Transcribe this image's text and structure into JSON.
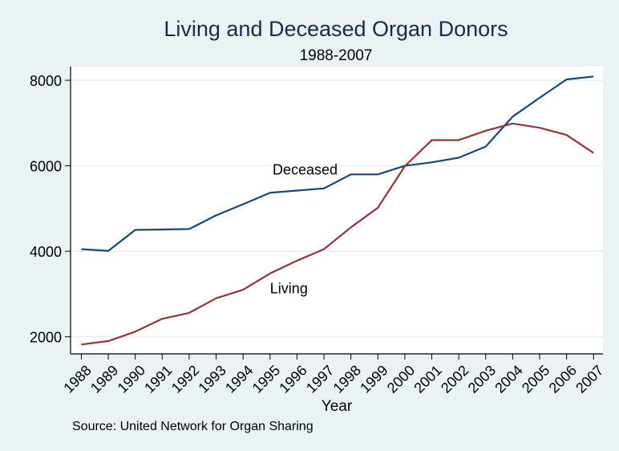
{
  "chart_data": {
    "type": "line",
    "title": "Living and Deceased Organ Donors",
    "subtitle": "1988-2007",
    "xlabel": "Year",
    "ylabel": "",
    "note": "Source: United Network for Organ Sharing",
    "x": [
      1988,
      1989,
      1990,
      1991,
      1992,
      1993,
      1994,
      1995,
      1996,
      1997,
      1998,
      1999,
      2000,
      2001,
      2002,
      2003,
      2004,
      2005,
      2006,
      2007
    ],
    "x_tick_labels": [
      "1988",
      "1989",
      "1990",
      "1991",
      "1992",
      "1993",
      "1994",
      "1995",
      "1996",
      "1997",
      "1998",
      "1999",
      "2000",
      "2001",
      "2002",
      "2003",
      "2004",
      "2005",
      "2006",
      "2007"
    ],
    "y_ticks": [
      2000,
      4000,
      6000,
      8000
    ],
    "y_tick_labels": [
      "2000",
      "4000",
      "6000",
      "8000"
    ],
    "ylim": [
      1600,
      8320
    ],
    "xlim": [
      1987.6,
      2007.35
    ],
    "grid": true,
    "legend": "none (inline labels)",
    "series": [
      {
        "name": "Deceased",
        "color": "#1a476f",
        "values": [
          4050,
          4010,
          4500,
          4510,
          4520,
          4840,
          5100,
          5370,
          5420,
          5470,
          5800,
          5800,
          6000,
          6080,
          6190,
          6450,
          7150,
          7590,
          8020,
          8090
        ],
        "label_anchor": {
          "x": 1996.3,
          "y": 5800
        }
      },
      {
        "name": "Living",
        "color": "#90353b",
        "values": [
          1820,
          1900,
          2120,
          2420,
          2560,
          2900,
          3100,
          3480,
          3780,
          4050,
          4560,
          5020,
          5990,
          6600,
          6600,
          6820,
          6990,
          6890,
          6720,
          6300
        ],
        "label_anchor": {
          "x": 1995.7,
          "y": 3020
        }
      }
    ],
    "colors": {
      "background": "#eaf2f3",
      "plot_background": "#ffffff",
      "gridline": "#eaf2f3",
      "axis": "#000000"
    }
  }
}
